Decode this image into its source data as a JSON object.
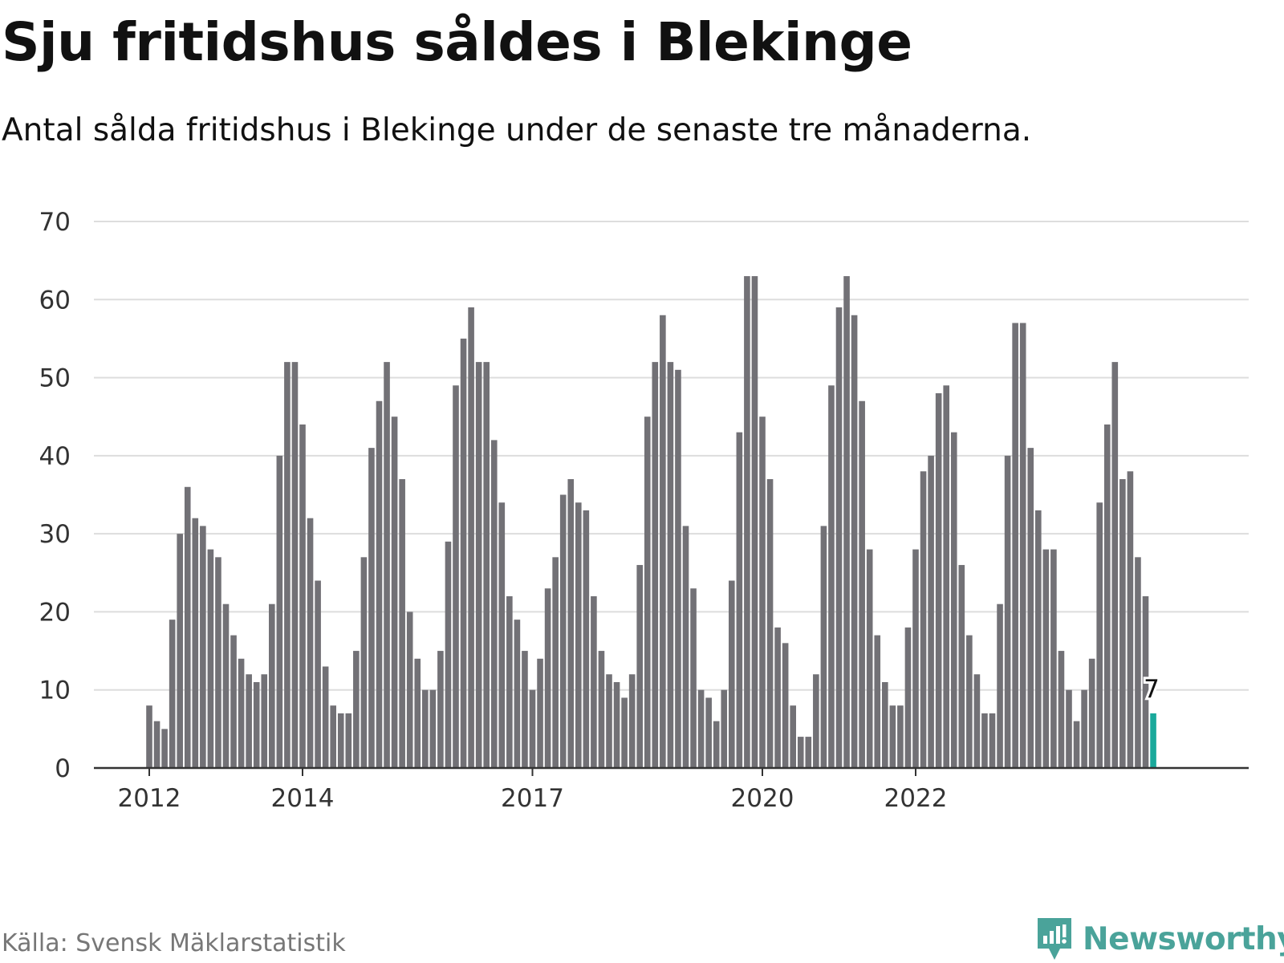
{
  "title": "Sju fritidshus såldes i Blekinge",
  "subtitle": "Antal sålda fritidshus i Blekinge under de senaste tre månaderna.",
  "source": "Källa: Svensk Mäklarstatistik",
  "brand": {
    "name": "Newsworthy",
    "icon": "newsworthy-logo-icon",
    "color": "#4aa39a"
  },
  "colors": {
    "bar": "#727176",
    "highlight": "#1aa99b",
    "grid": "#dddddd",
    "axis": "#333333"
  },
  "chart_data": {
    "type": "bar",
    "title": "Sju fritidshus såldes i Blekinge",
    "subtitle": "Antal sålda fritidshus i Blekinge under de senaste tre månaderna.",
    "xlabel": "",
    "ylabel": "",
    "ylim": [
      0,
      70
    ],
    "yticks": [
      0,
      10,
      20,
      30,
      40,
      50,
      60,
      70
    ],
    "grid": true,
    "x_start": "2012-01",
    "x_tick_labels": [
      {
        "label": "2012",
        "index": 0
      },
      {
        "label": "2014",
        "index": 20
      },
      {
        "label": "2017",
        "index": 50
      },
      {
        "label": "2020",
        "index": 80
      },
      {
        "label": "2022",
        "index": 100
      }
    ],
    "values": [
      8,
      6,
      5,
      19,
      30,
      36,
      32,
      31,
      28,
      27,
      21,
      17,
      14,
      12,
      11,
      12,
      21,
      40,
      52,
      52,
      44,
      32,
      24,
      13,
      8,
      7,
      7,
      15,
      27,
      41,
      47,
      52,
      45,
      37,
      20,
      14,
      10,
      10,
      15,
      29,
      49,
      55,
      59,
      52,
      52,
      42,
      34,
      22,
      19,
      15,
      10,
      14,
      23,
      27,
      35,
      37,
      34,
      33,
      22,
      15,
      12,
      11,
      9,
      12,
      26,
      45,
      52,
      58,
      52,
      51,
      31,
      23,
      10,
      9,
      6,
      10,
      24,
      43,
      63,
      63,
      45,
      37,
      18,
      16,
      8,
      4,
      4,
      12,
      31,
      49,
      59,
      63,
      58,
      47,
      28,
      17,
      11,
      8,
      8,
      18,
      28,
      38,
      40,
      48,
      49,
      43,
      26,
      17,
      12,
      7,
      7,
      21,
      40,
      57,
      57,
      41,
      33,
      28,
      28,
      15,
      10,
      6,
      10,
      14,
      34,
      44,
      52,
      37,
      38,
      27,
      22,
      7
    ],
    "highlight": {
      "index": 131,
      "value": 7,
      "label": "7"
    }
  }
}
